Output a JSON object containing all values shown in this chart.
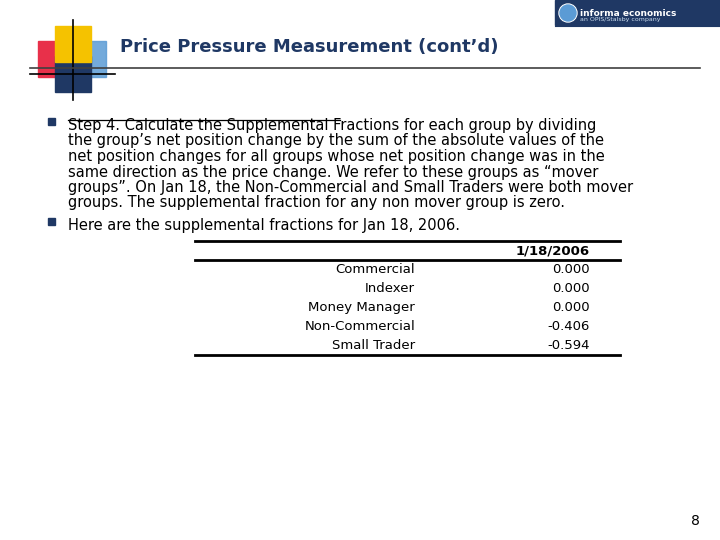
{
  "title": "Price Pressure Measurement (cont’d)",
  "title_color": "#1F3864",
  "background_color": "#FFFFFF",
  "bullet1_underline": "Step 4.  Calculate the Supplemental Fractions",
  "bullet1_rest": " for each group by dividing the group’s net position change by the sum of the absolute values of the net position changes for all groups whose net position change was in the same direction as the price change.  We refer to these groups as “mover groups”.  On Jan 18, the Non-Commercial and Small Traders were both mover groups.  The supplemental fraction for any non mover group is zero.",
  "bullet2": "Here are the supplemental fractions for Jan 18, 2006.",
  "table_header_col": "1/18/2006",
  "table_rows": [
    [
      "Commercial",
      "0.000"
    ],
    [
      "Indexer",
      "0.000"
    ],
    [
      "Money Manager",
      "0.000"
    ],
    [
      "Non-Commercial",
      "-0.406"
    ],
    [
      "Small Trader",
      "-0.594"
    ]
  ],
  "page_number": "8",
  "logo_yellow": "#F5C200",
  "logo_red": "#E8304A",
  "logo_blue_dark": "#1F3864",
  "logo_blue_light": "#5B9BD5",
  "header_line_color": "#404040",
  "bullet_color": "#1F3864",
  "title_fontsize": 13,
  "body_fontsize": 10.5,
  "table_fontsize": 9.5
}
